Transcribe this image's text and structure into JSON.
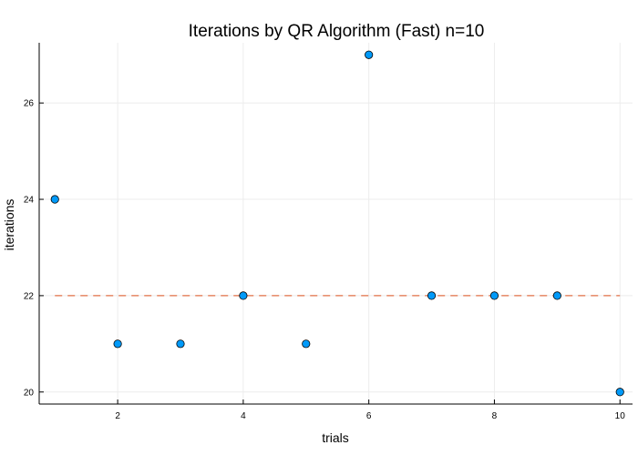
{
  "chart_data": {
    "type": "scatter",
    "title": "Iterations by QR Algorithm (Fast)  n=10",
    "xlabel": "trials",
    "ylabel": "iterations",
    "xlim": [
      0.75,
      10.2
    ],
    "ylim": [
      19.75,
      27.25
    ],
    "xticks": [
      2,
      4,
      6,
      8,
      10
    ],
    "yticks": [
      20,
      22,
      24,
      26
    ],
    "grid": true,
    "series": [
      {
        "x": [
          1,
          2,
          3,
          4,
          5,
          6,
          7,
          8,
          9,
          10
        ],
        "y": [
          24,
          21,
          21,
          22,
          21,
          27,
          22,
          22,
          22,
          20
        ],
        "color": "#009af9"
      }
    ],
    "reference_line": {
      "y": 22,
      "x": [
        1,
        10
      ],
      "style": "dashed",
      "color": "#e26f46"
    }
  }
}
